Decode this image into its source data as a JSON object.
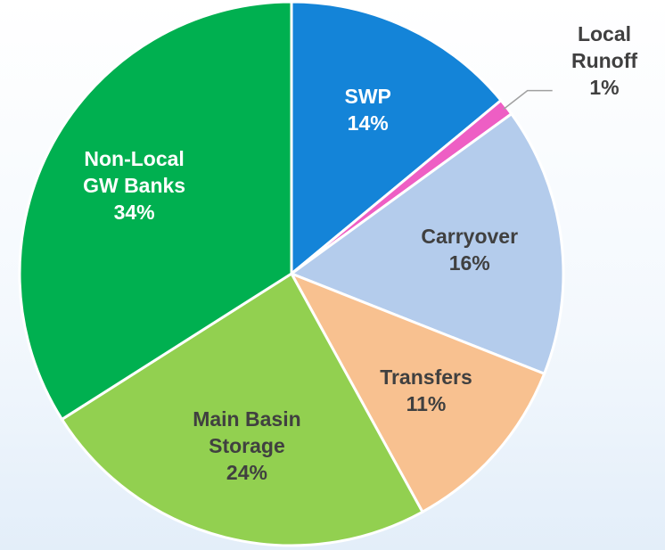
{
  "chart_data": {
    "type": "pie",
    "categories": [
      "SWP",
      "Local\nRunoff",
      "Carryover",
      "Transfers",
      "Main Basin\nStorage",
      "Non-Local\nGW Banks"
    ],
    "values": [
      14,
      1,
      16,
      11,
      24,
      34
    ],
    "value_labels": [
      "14%",
      "1%",
      "16%",
      "11%",
      "24%",
      "34%"
    ],
    "colors": [
      "#1484d8",
      "#ee5ec4",
      "#b4ccec",
      "#f8c190",
      "#92d050",
      "#00b050"
    ],
    "label_colors": [
      "#ffffff",
      "#404040",
      "#404040",
      "#404040",
      "#404040",
      "#ffffff"
    ]
  }
}
